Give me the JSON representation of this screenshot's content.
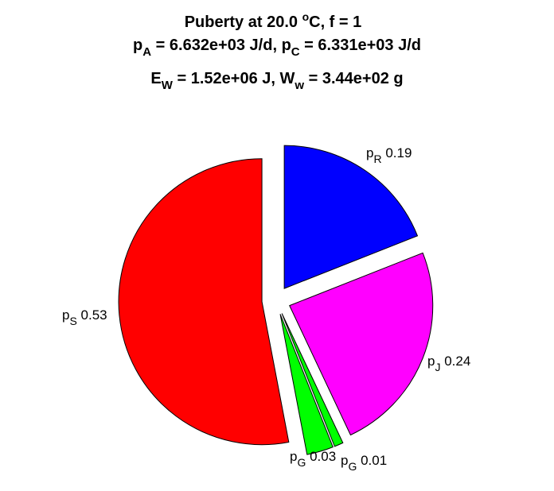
{
  "chart_data": {
    "type": "pie",
    "title": {
      "line1": {
        "text": "Puberty at 20.0 ",
        "sup": "o",
        "rest": "C, f = 1"
      },
      "line2": {
        "a_main": "p",
        "a_sub": "A",
        "a_value": " = 6.632e+03 J/d,  ",
        "c_main": "p",
        "c_sub": "C",
        "c_value": " = 6.331e+03 J/d"
      },
      "line3": {
        "e_main": "E",
        "e_sub": "W",
        "e_value": " = 1.52e+06 J, ",
        "w_main": "W",
        "w_sub": "w",
        "w_value": " = 3.44e+02 g"
      }
    },
    "slices": [
      {
        "key": "pR",
        "main": "p",
        "sub": "R",
        "value_label": " 0.19",
        "value": 0.19,
        "color": "#0000ff",
        "exploded": true
      },
      {
        "key": "pJ",
        "main": "p",
        "sub": "J",
        "value_label": " 0.24",
        "value": 0.24,
        "color": "#ff00ff",
        "exploded": true
      },
      {
        "key": "pG1",
        "main": "p",
        "sub": "G",
        "value_label": " 0.01",
        "value": 0.01,
        "color": "#00ff00",
        "exploded": true
      },
      {
        "key": "pG2",
        "main": "p",
        "sub": "G",
        "value_label": " 0.03",
        "value": 0.03,
        "color": "#00ff00",
        "exploded": true
      },
      {
        "key": "pS",
        "main": "p",
        "sub": "S",
        "value_label": " 0.53",
        "value": 0.53,
        "color": "#ff0000",
        "exploded": true
      }
    ]
  }
}
